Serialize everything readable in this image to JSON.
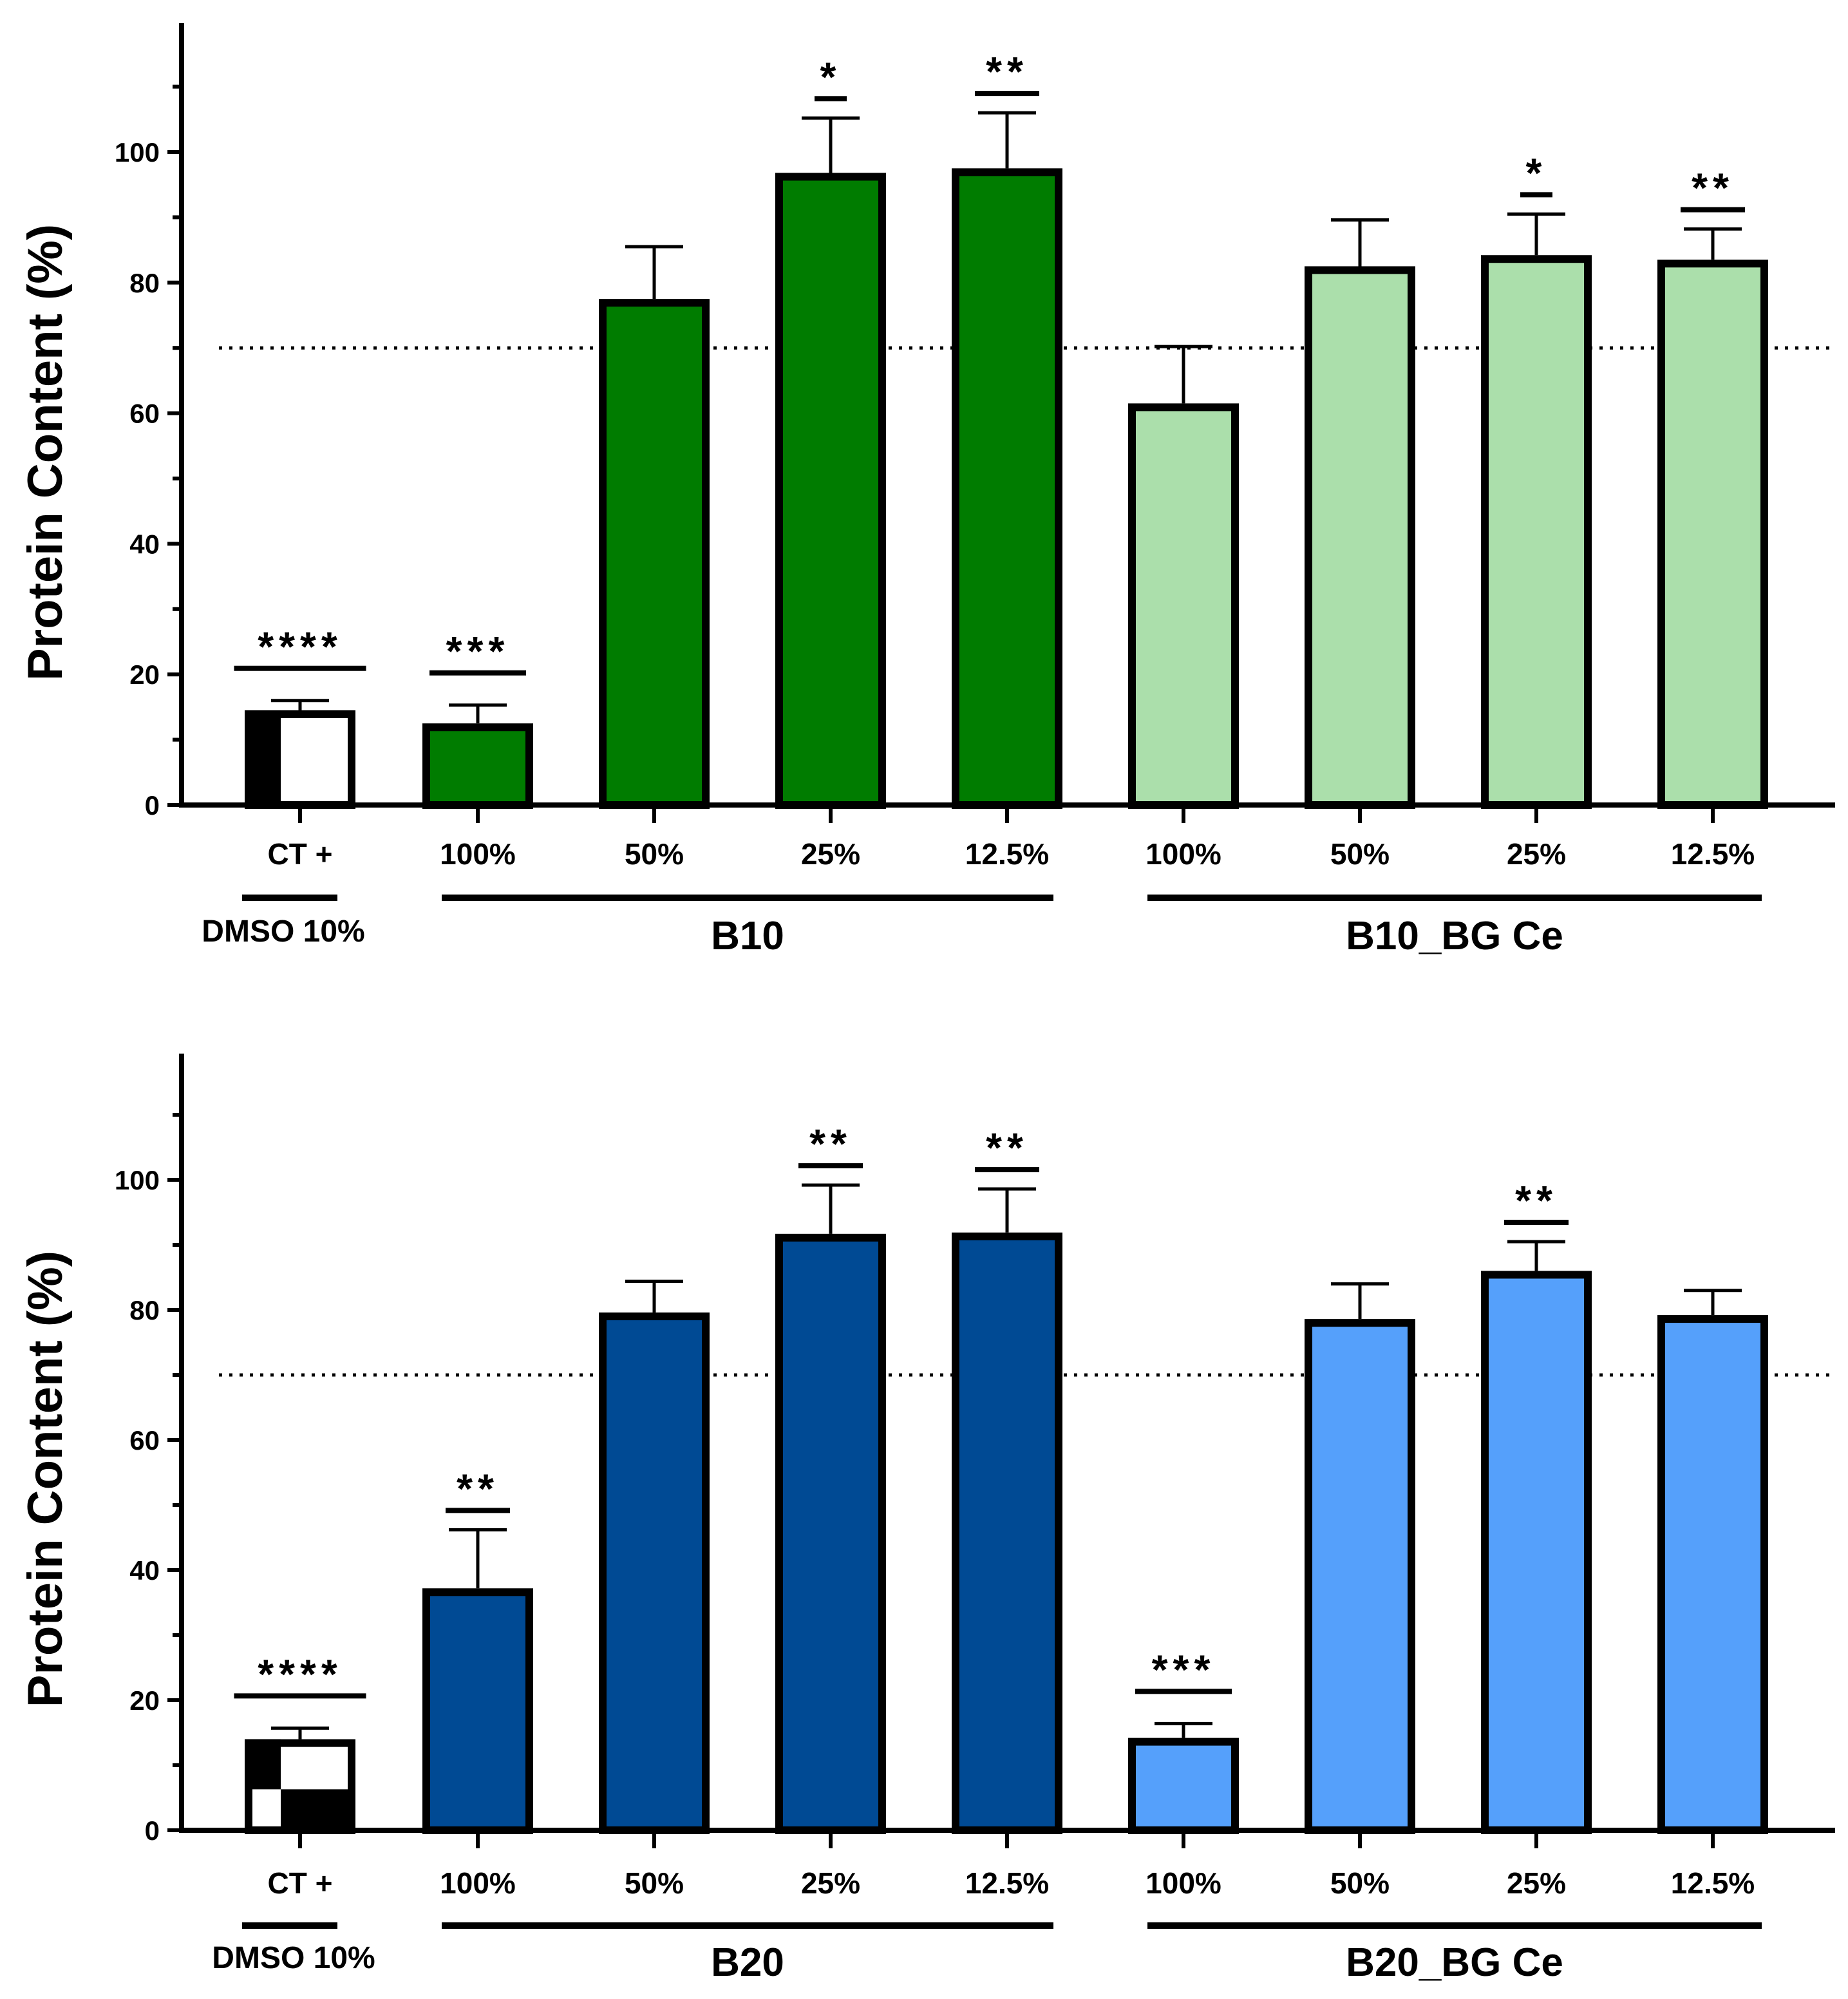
{
  "chart_data": [
    {
      "type": "bar",
      "ylabel": "Protein Content (%)",
      "ylim": [
        0,
        118
      ],
      "yticks": [
        "0",
        "20",
        "40",
        "60",
        "80",
        "100"
      ],
      "reference_line": 70,
      "categories": [
        "CT +",
        "100%",
        "50%",
        "25%",
        "12.5%",
        "100%",
        "50%",
        "25%",
        "12.5%"
      ],
      "values": [
        14.5,
        12.5,
        77.5,
        96.8,
        97.5,
        61.5,
        82.5,
        84.2,
        83.5
      ],
      "error_upper": [
        16,
        15.3,
        85.5,
        105.2,
        106,
        70.2,
        89.6,
        90.5,
        88.2
      ],
      "significance": [
        "****",
        "***",
        "",
        "*",
        "**",
        "",
        "",
        "*",
        "**"
      ],
      "groups": [
        {
          "label": "DMSO 10%",
          "members": [
            0
          ]
        },
        {
          "label": "B10",
          "members": [
            1,
            2,
            3,
            4
          ]
        },
        {
          "label": "B10_BG Ce",
          "members": [
            5,
            6,
            7,
            8
          ]
        }
      ],
      "colors": [
        "pattern",
        "#007c00",
        "#007c00",
        "#007c00",
        "#007c00",
        "#abdfab",
        "#abdfab",
        "#abdfab",
        "#abdfab"
      ]
    },
    {
      "type": "bar",
      "ylabel": "Protein Content (%)",
      "ylim": [
        0,
        118
      ],
      "yticks": [
        "0",
        "20",
        "40",
        "60",
        "80",
        "100"
      ],
      "reference_line": 70,
      "categories": [
        "CT +",
        "100%",
        "50%",
        "25%",
        "12.5%",
        "100%",
        "50%",
        "25%",
        "12.5%"
      ],
      "values": [
        14,
        37.2,
        79.6,
        91.7,
        91.9,
        14.2,
        78.6,
        86,
        79.2
      ],
      "error_upper": [
        15.7,
        46.2,
        84.4,
        99.2,
        98.6,
        16.4,
        84,
        90.5,
        83
      ],
      "significance": [
        "****",
        "**",
        "",
        "**",
        "**",
        "***",
        "",
        "**",
        ""
      ],
      "groups": [
        {
          "label": "DMSO 10%",
          "members": [
            0
          ]
        },
        {
          "label": "B20",
          "members": [
            1,
            2,
            3,
            4
          ]
        },
        {
          "label": "B20_BG Ce",
          "members": [
            5,
            6,
            7,
            8
          ]
        }
      ],
      "colors": [
        "pattern",
        "#004a94",
        "#004a94",
        "#004a94",
        "#004a94",
        "#55a0fb",
        "#55a0fb",
        "#55a0fb",
        "#55a0fb"
      ]
    }
  ]
}
